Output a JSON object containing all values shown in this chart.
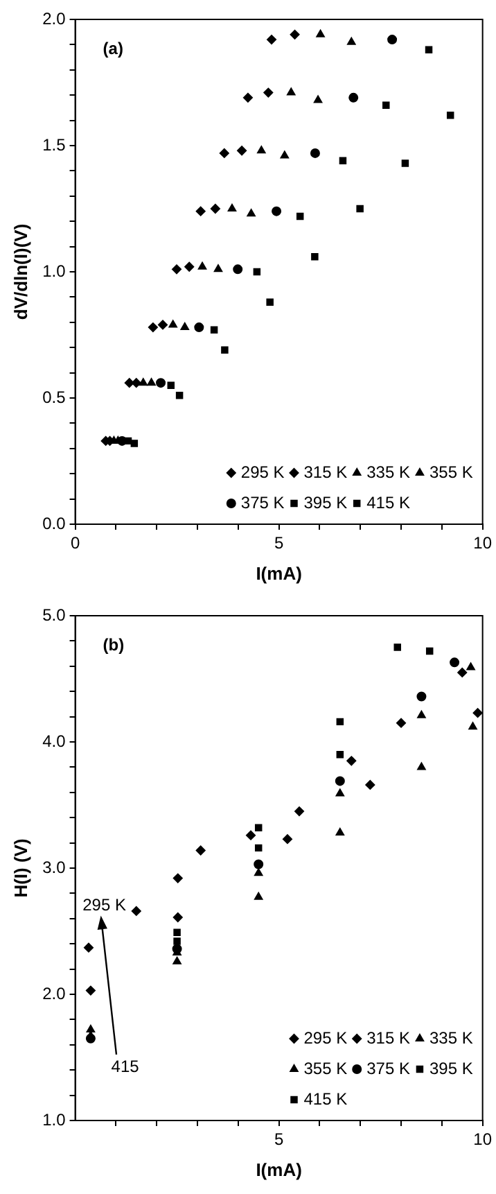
{
  "chart_data": [
    {
      "type": "scatter",
      "xlabel": "I(mA)",
      "ylabel": "dV/dln(I)(V)",
      "annotations": [
        "(a)"
      ],
      "xlim": [
        0,
        10
      ],
      "ylim": [
        0,
        2
      ],
      "xticks": [
        0,
        {
          "value": 1,
          "label": null
        },
        {
          "value": 2,
          "label": null
        },
        {
          "value": 3,
          "label": null
        },
        {
          "value": 4,
          "label": null
        },
        5,
        {
          "value": 6,
          "label": null
        },
        {
          "value": 7,
          "label": null
        },
        {
          "value": 8,
          "label": null
        },
        {
          "value": 9,
          "label": null
        },
        10
      ],
      "yticks": [
        {
          "value": 0,
          "label": "0.0"
        },
        {
          "value": 0.1,
          "label": null
        },
        {
          "value": 0.2,
          "label": null
        },
        {
          "value": 0.3,
          "label": null
        },
        {
          "value": 0.4,
          "label": null
        },
        {
          "value": 0.5,
          "label": "0.5"
        },
        {
          "value": 0.6,
          "label": null
        },
        {
          "value": 0.7,
          "label": null
        },
        {
          "value": 0.8,
          "label": null
        },
        {
          "value": 0.9,
          "label": null
        },
        {
          "value": 1,
          "label": "1.0"
        },
        {
          "value": 1.1,
          "label": null
        },
        {
          "value": 1.2,
          "label": null
        },
        {
          "value": 1.3,
          "label": null
        },
        {
          "value": 1.4,
          "label": null
        },
        {
          "value": 1.5,
          "label": "1.5"
        },
        {
          "value": 1.6,
          "label": null
        },
        {
          "value": 1.7,
          "label": null
        },
        {
          "value": 1.8,
          "label": null
        },
        {
          "value": 1.9,
          "label": null
        },
        {
          "value": 2,
          "label": "2.0"
        }
      ],
      "grid": false,
      "legend": "bottom right",
      "series": [
        {
          "name": "295 K",
          "color": "#000000",
          "marker": "diamond",
          "x": [
            0.75,
            1.33,
            1.91,
            2.49,
            3.08,
            3.66,
            4.24,
            4.82
          ],
          "values": [
            0.33,
            0.56,
            0.78,
            1.01,
            1.24,
            1.47,
            1.69,
            1.92
          ]
        },
        {
          "name": "315 K",
          "color": "#000000",
          "marker": "diamond",
          "x": [
            0.85,
            1.5,
            2.15,
            2.8,
            3.44,
            4.09,
            4.74,
            5.39
          ],
          "values": [
            0.33,
            0.56,
            0.79,
            1.02,
            1.25,
            1.48,
            1.71,
            1.94
          ]
        },
        {
          "name": "335 K",
          "color": "#000000",
          "marker": "triangle",
          "x": [
            0.95,
            1.67,
            2.4,
            3.12,
            3.85,
            4.57,
            5.3,
            6.02
          ],
          "values": [
            0.33,
            0.56,
            0.79,
            1.02,
            1.25,
            1.48,
            1.71,
            1.94
          ]
        },
        {
          "name": "355 K",
          "color": "#000000",
          "marker": "triangle",
          "x": [
            1.05,
            1.87,
            2.69,
            3.51,
            4.32,
            5.14,
            5.96,
            6.78
          ],
          "values": [
            0.33,
            0.56,
            0.78,
            1.01,
            1.23,
            1.46,
            1.68,
            1.91
          ]
        },
        {
          "name": "375 K",
          "color": "#000000",
          "marker": "circle",
          "x": [
            1.15,
            2.1,
            3.04,
            3.99,
            4.94,
            5.89,
            6.83,
            7.78
          ],
          "values": [
            0.33,
            0.56,
            0.78,
            1.01,
            1.24,
            1.47,
            1.69,
            1.92
          ]
        },
        {
          "name": "395 K",
          "color": "#000000",
          "marker": "square",
          "x": [
            1.3,
            2.35,
            3.41,
            4.46,
            5.52,
            6.57,
            7.63,
            8.68
          ],
          "values": [
            0.33,
            0.55,
            0.77,
            1.0,
            1.22,
            1.44,
            1.66,
            1.88
          ]
        },
        {
          "name": "415 K",
          "color": "#000000",
          "marker": "square",
          "x": [
            1.45,
            2.56,
            3.67,
            4.78,
            5.88,
            6.99,
            8.1,
            9.21
          ],
          "values": [
            0.32,
            0.51,
            0.69,
            0.88,
            1.06,
            1.25,
            1.43,
            1.62
          ]
        }
      ]
    },
    {
      "type": "scatter",
      "xlabel": "I(mA)",
      "ylabel": "H(I) (V)",
      "annotations": [
        "(b)",
        "295 K",
        "415"
      ],
      "xlim": [
        0,
        10
      ],
      "ylim": [
        1,
        5
      ],
      "xticks": [
        {
          "value": 1,
          "label": null
        },
        {
          "value": 2,
          "label": null
        },
        {
          "value": 3,
          "label": null
        },
        {
          "value": 4,
          "label": null
        },
        5,
        {
          "value": 6,
          "label": null
        },
        {
          "value": 7,
          "label": null
        },
        {
          "value": 8,
          "label": null
        },
        {
          "value": 9,
          "label": null
        },
        10
      ],
      "yticks": [
        {
          "value": 1,
          "label": "1.0"
        },
        {
          "value": 1.2,
          "label": null
        },
        {
          "value": 1.4,
          "label": null
        },
        {
          "value": 1.6,
          "label": null
        },
        {
          "value": 1.8,
          "label": null
        },
        {
          "value": 2,
          "label": "2.0"
        },
        {
          "value": 2.2,
          "label": null
        },
        {
          "value": 2.4,
          "label": null
        },
        {
          "value": 2.6,
          "label": null
        },
        {
          "value": 2.8,
          "label": null
        },
        {
          "value": 3,
          "label": "3.0"
        },
        {
          "value": 3.2,
          "label": null
        },
        {
          "value": 3.4,
          "label": null
        },
        {
          "value": 3.6,
          "label": null
        },
        {
          "value": 3.8,
          "label": null
        },
        {
          "value": 4,
          "label": "4.0"
        },
        {
          "value": 4.2,
          "label": null
        },
        {
          "value": 4.4,
          "label": null
        },
        {
          "value": 4.6,
          "label": null
        },
        {
          "value": 4.8,
          "label": null
        },
        {
          "value": 5,
          "label": "5.0"
        }
      ],
      "grid": false,
      "legend": "bottom right",
      "series": [
        {
          "name": "295 K",
          "color": "#000000",
          "marker": "diamond",
          "x": [
            0.33,
            1.5,
            2.52,
            3.08,
            4.31,
            5.5,
            6.78,
            8.0,
            9.5
          ],
          "values": [
            2.37,
            2.66,
            2.92,
            3.14,
            3.26,
            3.45,
            3.85,
            4.15,
            4.55
          ]
        },
        {
          "name": "315 K",
          "color": "#000000",
          "marker": "diamond",
          "x": [
            0.38,
            2.52,
            5.21,
            7.24,
            9.88
          ],
          "values": [
            2.03,
            2.61,
            3.23,
            3.66,
            4.23
          ]
        },
        {
          "name": "335 K",
          "color": "#000000",
          "marker": "triangle",
          "x": [
            0.38,
            2.5,
            4.5,
            6.5,
            8.5,
            9.76
          ],
          "values": [
            1.72,
            2.26,
            2.77,
            3.28,
            3.8,
            4.12
          ]
        },
        {
          "name": "355 K",
          "color": "#000000",
          "marker": "triangle",
          "x": [
            0.38,
            2.5,
            4.5,
            6.5,
            8.5,
            9.71
          ],
          "values": [
            1.67,
            2.33,
            2.96,
            3.59,
            4.21,
            4.59
          ]
        },
        {
          "name": "375 K",
          "color": "#000000",
          "marker": "circle",
          "x": [
            0.38,
            2.5,
            4.5,
            6.5,
            8.5,
            9.31
          ],
          "values": [
            1.65,
            2.36,
            3.03,
            3.69,
            4.36,
            4.63
          ]
        },
        {
          "name": "395 K",
          "color": "#000000",
          "marker": "square",
          "x": [
            2.5,
            4.5,
            6.5,
            8.7
          ],
          "values": [
            2.42,
            3.16,
            3.9,
            4.72
          ]
        },
        {
          "name": "415 K",
          "color": "#000000",
          "marker": "square",
          "x": [
            2.5,
            4.5,
            6.5,
            7.91
          ],
          "values": [
            2.49,
            3.32,
            4.16,
            4.75
          ]
        }
      ]
    }
  ]
}
